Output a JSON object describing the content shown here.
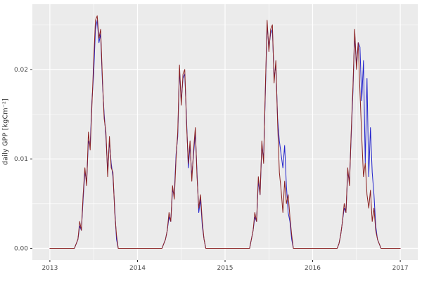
{
  "chart_data": {
    "type": "line",
    "title": "",
    "xlabel": "",
    "ylabel": "daily GPP [kgCm⁻²]",
    "xlim": [
      2013,
      2017
    ],
    "ylim": [
      0,
      0.026
    ],
    "grid": "on",
    "legend_position": "none",
    "panel_bg": "#EBEBEB",
    "grid_color": "#FFFFFF",
    "tick_color": "#333333",
    "tick_label_color": "#4D4D4D",
    "x_ticks": [
      2013,
      2014,
      2015,
      2016,
      2017
    ],
    "x_tick_labels": [
      "2013",
      "2014",
      "2015",
      "2016",
      "2017"
    ],
    "x_minor_ticks": [
      2013.5,
      2014.5,
      2015.5,
      2016.5
    ],
    "y_ticks": [
      0,
      0.01,
      0.02
    ],
    "y_tick_labels": [
      "0.00",
      "0.01",
      "0.02"
    ],
    "y_minor_ticks": [
      0.005,
      0.015,
      0.025
    ],
    "x_start": 2013.0,
    "x_step": 0.02,
    "series": [
      {
        "name": "blue",
        "color": "#2222CC",
        "values": [
          0,
          0,
          0,
          0,
          0,
          0,
          0,
          0,
          0,
          0,
          0,
          0,
          0,
          0,
          0,
          0.0005,
          0.001,
          0.0025,
          0.002,
          0.0055,
          0.0085,
          0.0075,
          0.012,
          0.0115,
          0.0165,
          0.0195,
          0.0245,
          0.0255,
          0.023,
          0.024,
          0.0185,
          0.015,
          0.0125,
          0.0085,
          0.012,
          0.0095,
          0.008,
          0.0045,
          0.001,
          0,
          0,
          0,
          0,
          0,
          0,
          0,
          0,
          0,
          0,
          0,
          0,
          0,
          0,
          0,
          0,
          0,
          0,
          0,
          0,
          0,
          0,
          0,
          0,
          0,
          0,
          0.0005,
          0.001,
          0.002,
          0.0035,
          0.003,
          0.0065,
          0.006,
          0.0105,
          0.0125,
          0.02,
          0.0165,
          0.019,
          0.0195,
          0.0145,
          0.009,
          0.0115,
          0.008,
          0.0105,
          0.013,
          0.0085,
          0.004,
          0.0055,
          0.0025,
          0.001,
          0,
          0,
          0,
          0,
          0,
          0,
          0,
          0,
          0,
          0,
          0,
          0,
          0,
          0,
          0,
          0,
          0,
          0,
          0,
          0,
          0,
          0,
          0,
          0,
          0,
          0,
          0.001,
          0.002,
          0.0035,
          0.003,
          0.0075,
          0.006,
          0.0115,
          0.01,
          0.0175,
          0.025,
          0.0225,
          0.024,
          0.0245,
          0.019,
          0.0205,
          0.0145,
          0.012,
          0.0105,
          0.009,
          0.0115,
          0.007,
          0.004,
          0.003,
          0.001,
          0,
          0,
          0,
          0,
          0,
          0,
          0,
          0,
          0,
          0,
          0,
          0,
          0,
          0,
          0,
          0,
          0,
          0,
          0,
          0,
          0,
          0,
          0,
          0,
          0,
          0,
          0.0005,
          0.0015,
          0.003,
          0.0045,
          0.004,
          0.0085,
          0.0075,
          0.0125,
          0.0175,
          0.024,
          0.0205,
          0.023,
          0.0225,
          0.0165,
          0.021,
          0.0095,
          0.019,
          0.008,
          0.0135,
          0.0085,
          0.006,
          0.0025,
          0.001,
          0.0005,
          0,
          0,
          0,
          0,
          0,
          0,
          0,
          0,
          0,
          0,
          0,
          0
        ]
      },
      {
        "name": "darkred",
        "color": "#8B2020",
        "values": [
          0,
          0,
          0,
          0,
          0,
          0,
          0,
          0,
          0,
          0,
          0,
          0,
          0,
          0,
          0,
          0.0005,
          0.001,
          0.003,
          0.002,
          0.006,
          0.009,
          0.007,
          0.013,
          0.011,
          0.016,
          0.021,
          0.0255,
          0.026,
          0.0235,
          0.0245,
          0.019,
          0.0145,
          0.013,
          0.008,
          0.0125,
          0.009,
          0.0085,
          0.004,
          0.0015,
          0,
          0,
          0,
          0,
          0,
          0,
          0,
          0,
          0,
          0,
          0,
          0,
          0,
          0,
          0,
          0,
          0,
          0,
          0,
          0,
          0,
          0,
          0,
          0,
          0,
          0,
          0.0005,
          0.001,
          0.002,
          0.004,
          0.003,
          0.007,
          0.0055,
          0.01,
          0.013,
          0.0205,
          0.016,
          0.0195,
          0.02,
          0.014,
          0.0095,
          0.012,
          0.0075,
          0.011,
          0.0135,
          0.008,
          0.0045,
          0.006,
          0.003,
          0.001,
          0,
          0,
          0,
          0,
          0,
          0,
          0,
          0,
          0,
          0,
          0,
          0,
          0,
          0,
          0,
          0,
          0,
          0,
          0,
          0,
          0,
          0,
          0,
          0,
          0,
          0,
          0.001,
          0.002,
          0.004,
          0.003,
          0.008,
          0.006,
          0.012,
          0.0095,
          0.018,
          0.0255,
          0.022,
          0.0245,
          0.025,
          0.0185,
          0.021,
          0.014,
          0.0085,
          0.0065,
          0.004,
          0.0075,
          0.005,
          0.006,
          0.0035,
          0.0015,
          0,
          0,
          0,
          0,
          0,
          0,
          0,
          0,
          0,
          0,
          0,
          0,
          0,
          0,
          0,
          0,
          0,
          0,
          0,
          0,
          0,
          0,
          0,
          0,
          0,
          0,
          0.0005,
          0.0015,
          0.003,
          0.005,
          0.004,
          0.009,
          0.007,
          0.013,
          0.018,
          0.0245,
          0.02,
          0.023,
          0.0175,
          0.0125,
          0.008,
          0.0095,
          0.006,
          0.0045,
          0.0065,
          0.003,
          0.0045,
          0.002,
          0.001,
          0.0005,
          0,
          0,
          0,
          0,
          0,
          0,
          0,
          0,
          0,
          0,
          0,
          0
        ]
      }
    ]
  }
}
